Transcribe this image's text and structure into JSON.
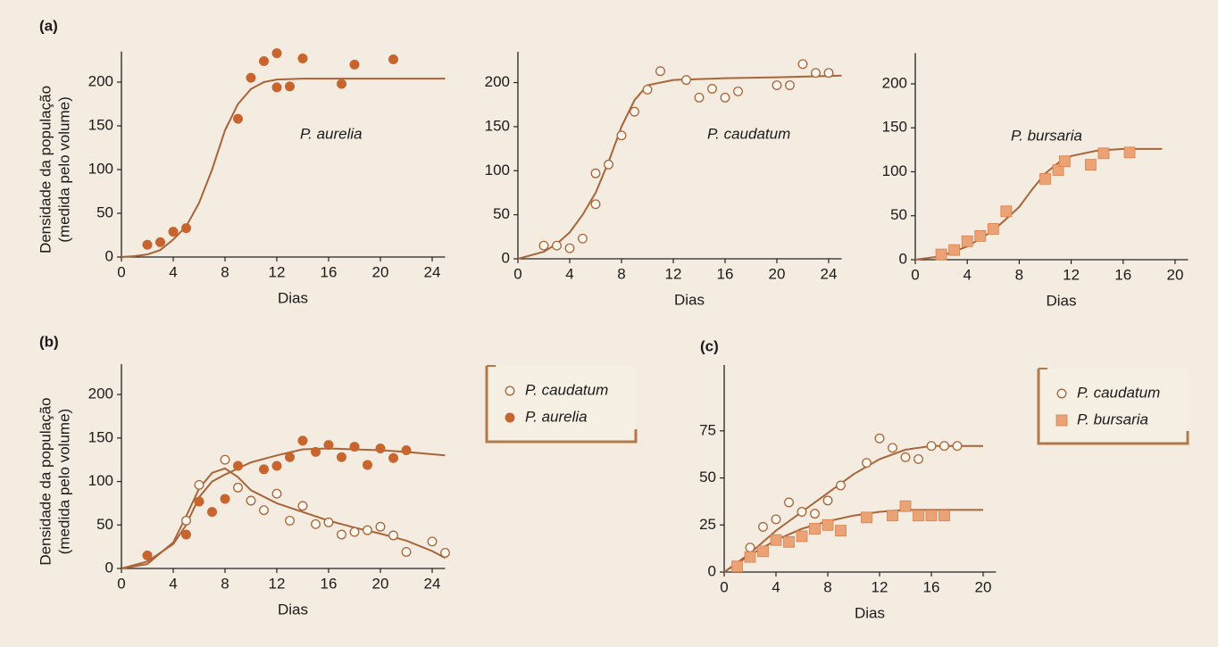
{
  "chart_data": [
    {
      "type": "scatter",
      "panel": "(a)",
      "xlabel": "Dias",
      "ylabel": [
        "Densidade da população",
        "(medida pelo volume)"
      ],
      "annotation": "P. aurelia",
      "xlim": [
        0,
        25
      ],
      "ylim": [
        0,
        235
      ],
      "xticks": [
        0,
        4,
        8,
        12,
        16,
        20,
        24
      ],
      "yticks": [
        0,
        50,
        100,
        150,
        200
      ],
      "grid": false,
      "series": [
        {
          "marker": "filled",
          "color": "#c8652f",
          "x": [
            2,
            3,
            4,
            5,
            9,
            10,
            11,
            12,
            12,
            13,
            14,
            17,
            18,
            21
          ],
          "values": [
            14,
            17,
            29,
            33,
            158,
            205,
            224,
            233,
            194,
            195,
            227,
            198,
            220,
            226
          ]
        },
        {
          "marker": "line",
          "color": "#a8653a",
          "x": [
            0,
            1,
            2,
            3,
            4,
            5,
            6,
            7,
            8,
            9,
            10,
            11,
            12,
            14,
            25
          ],
          "values": [
            0,
            1,
            3,
            8,
            20,
            35,
            62,
            100,
            145,
            175,
            192,
            200,
            203,
            204,
            204
          ]
        }
      ]
    },
    {
      "type": "scatter",
      "xlabel": "Dias",
      "annotation": "P. caudatum",
      "xlim": [
        0,
        25
      ],
      "ylim": [
        0,
        235
      ],
      "xticks": [
        0,
        4,
        8,
        12,
        16,
        20,
        24
      ],
      "yticks": [
        0,
        50,
        100,
        150,
        200
      ],
      "grid": false,
      "series": [
        {
          "marker": "open",
          "color": "#a8653a",
          "x": [
            2,
            3,
            4,
            5,
            6,
            6,
            7,
            8,
            9,
            10,
            11,
            13,
            14,
            15,
            16,
            17,
            20,
            21,
            22,
            23,
            24
          ],
          "values": [
            15,
            15,
            12,
            23,
            97,
            62,
            107,
            140,
            167,
            192,
            213,
            203,
            183,
            193,
            183,
            190,
            197,
            197,
            221,
            211,
            211
          ]
        },
        {
          "marker": "line",
          "color": "#a8653a",
          "x": [
            0,
            2,
            3,
            4,
            5,
            6,
            7,
            8,
            9,
            10,
            12,
            16,
            20,
            25
          ],
          "values": [
            0,
            8,
            17,
            30,
            50,
            75,
            110,
            150,
            180,
            197,
            203,
            205,
            206,
            208
          ]
        }
      ]
    },
    {
      "type": "scatter",
      "xlabel": "Dias",
      "annotation": "P. bursaria",
      "xlim": [
        0,
        21
      ],
      "ylim": [
        0,
        235
      ],
      "xticks": [
        0,
        4,
        8,
        12,
        16,
        20
      ],
      "yticks": [
        0,
        50,
        100,
        150,
        200
      ],
      "grid": false,
      "series": [
        {
          "marker": "square",
          "color": "#eba274",
          "x": [
            2,
            3,
            4,
            5,
            6,
            7,
            10,
            11,
            11.5,
            13.5,
            14.5,
            16.5
          ],
          "values": [
            6,
            11,
            21,
            27,
            35,
            55,
            92,
            102,
            112,
            108,
            121,
            122
          ]
        },
        {
          "marker": "line",
          "color": "#a8653a",
          "x": [
            0,
            2,
            4,
            6,
            8,
            9,
            10,
            11,
            12,
            14,
            16,
            19
          ],
          "values": [
            0,
            4,
            15,
            33,
            60,
            80,
            98,
            110,
            118,
            124,
            126,
            126
          ]
        }
      ]
    },
    {
      "type": "scatter",
      "panel": "(b)",
      "xlabel": "Dias",
      "ylabel": [
        "Densidade da população",
        "(medida pelo volume)"
      ],
      "xlim": [
        0,
        25
      ],
      "ylim": [
        0,
        235
      ],
      "xticks": [
        0,
        4,
        8,
        12,
        16,
        20,
        24
      ],
      "yticks": [
        0,
        50,
        100,
        150,
        200
      ],
      "grid": false,
      "series": [
        {
          "name": "P. caudatum",
          "marker": "open",
          "color": "#a8653a",
          "x": [
            5,
            6,
            8,
            9,
            10,
            11,
            12,
            13,
            14,
            15,
            16,
            17,
            18,
            19,
            20,
            21,
            22,
            24,
            25
          ],
          "values": [
            55,
            96,
            125,
            93,
            78,
            67,
            86,
            55,
            72,
            51,
            53,
            39,
            42,
            44,
            48,
            38,
            19,
            31,
            18
          ]
        },
        {
          "name": "P. aurelia",
          "marker": "filled",
          "color": "#c8652f",
          "x": [
            2,
            5,
            6,
            7,
            8,
            9,
            11,
            12,
            13,
            14,
            15,
            16,
            17,
            18,
            19,
            20,
            21,
            22
          ],
          "values": [
            15,
            39,
            77,
            65,
            80,
            118,
            114,
            118,
            128,
            147,
            134,
            142,
            128,
            140,
            119,
            138,
            127,
            136
          ]
        },
        {
          "marker": "line",
          "color": "#a8653a",
          "x": [
            0,
            2,
            4,
            5,
            6,
            7,
            8,
            9,
            10,
            12,
            14,
            16,
            18,
            20,
            22,
            24,
            25
          ],
          "values": [
            0,
            5,
            30,
            60,
            92,
            110,
            115,
            105,
            90,
            75,
            65,
            55,
            47,
            40,
            32,
            20,
            12
          ]
        },
        {
          "marker": "line",
          "color": "#a8653a",
          "x": [
            0,
            2,
            4,
            5,
            6,
            7,
            8,
            9,
            10,
            12,
            14,
            16,
            20,
            22,
            25
          ],
          "values": [
            0,
            8,
            28,
            50,
            82,
            100,
            108,
            115,
            122,
            130,
            137,
            138,
            136,
            134,
            130
          ]
        }
      ]
    },
    {
      "type": "scatter",
      "panel": "(c)",
      "xlabel": "Dias",
      "xlim": [
        0,
        21
      ],
      "ylim": [
        0,
        110
      ],
      "xticks": [
        0,
        4,
        8,
        12,
        16,
        20
      ],
      "yticks": [
        0,
        25,
        50,
        75
      ],
      "grid": false,
      "series": [
        {
          "name": "P. caudatum",
          "marker": "open",
          "color": "#a8653a",
          "x": [
            1,
            2,
            3,
            4,
            5,
            6,
            7,
            8,
            9,
            11,
            12,
            13,
            14,
            15,
            16,
            17,
            18
          ],
          "values": [
            3,
            13,
            24,
            28,
            37,
            32,
            31,
            38,
            46,
            58,
            71,
            66,
            61,
            60,
            67,
            67,
            67
          ]
        },
        {
          "name": "P. bursaria",
          "marker": "square",
          "color": "#eba274",
          "x": [
            1,
            2,
            3,
            4,
            5,
            6,
            7,
            8,
            9,
            11,
            13,
            14,
            15,
            16,
            17
          ],
          "values": [
            3,
            8,
            11,
            17,
            16,
            19,
            23,
            25,
            22,
            29,
            30,
            35,
            30,
            30,
            30
          ]
        },
        {
          "marker": "line",
          "color": "#a8653a",
          "x": [
            0,
            2,
            4,
            6,
            8,
            10,
            12,
            14,
            16,
            18,
            20
          ],
          "values": [
            0,
            10,
            22,
            32,
            42,
            52,
            60,
            65,
            67,
            67,
            67
          ]
        },
        {
          "marker": "line",
          "color": "#a8653a",
          "x": [
            0,
            2,
            4,
            6,
            8,
            10,
            12,
            14,
            16,
            20
          ],
          "values": [
            0,
            9,
            17,
            23,
            27,
            30,
            32,
            33,
            33,
            33
          ]
        }
      ]
    }
  ]
}
